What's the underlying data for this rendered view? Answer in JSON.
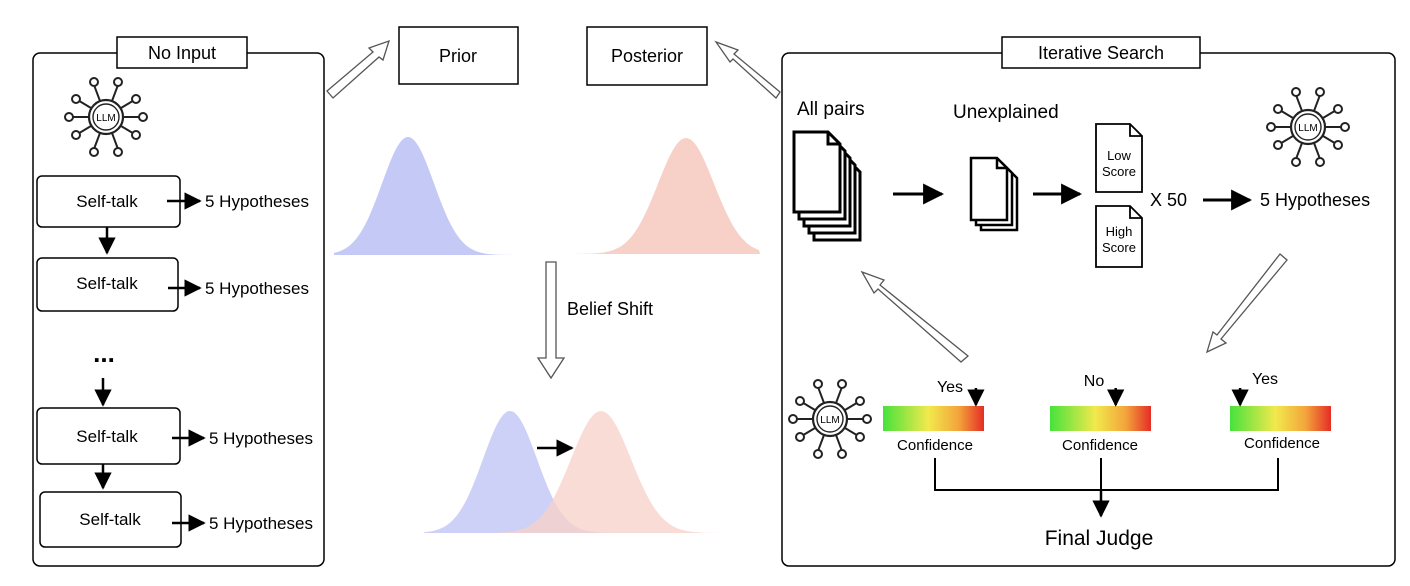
{
  "left_panel": {
    "title": "No Input",
    "step_label": "Self-talk",
    "output_label": "5 Hypotheses",
    "ellipsis": "..."
  },
  "middle": {
    "prior_label": "Prior",
    "posterior_label": "Posterior",
    "shift_label": "Belief Shift",
    "prior_color": "#c5c9f6",
    "posterior_color": "#f7d0c7"
  },
  "right_panel": {
    "title": "Iterative Search",
    "all_pairs_label": "All pairs",
    "unexplained_label": "Unexplained",
    "low_score_line1": "Low",
    "low_score_line2": "Score",
    "high_score_line1": "High",
    "high_score_line2": "Score",
    "multiplier": "X 50",
    "hypotheses_label": "5 Hypotheses",
    "judges": [
      {
        "answer": "Yes",
        "label": "Confidence",
        "level": 0.92
      },
      {
        "answer": "No",
        "label": "Confidence",
        "level": 0.65
      },
      {
        "answer": "Yes",
        "label": "Confidence",
        "level": 0.1
      }
    ],
    "final_label": "Final Judge"
  },
  "llm_icon_label": "LLM"
}
